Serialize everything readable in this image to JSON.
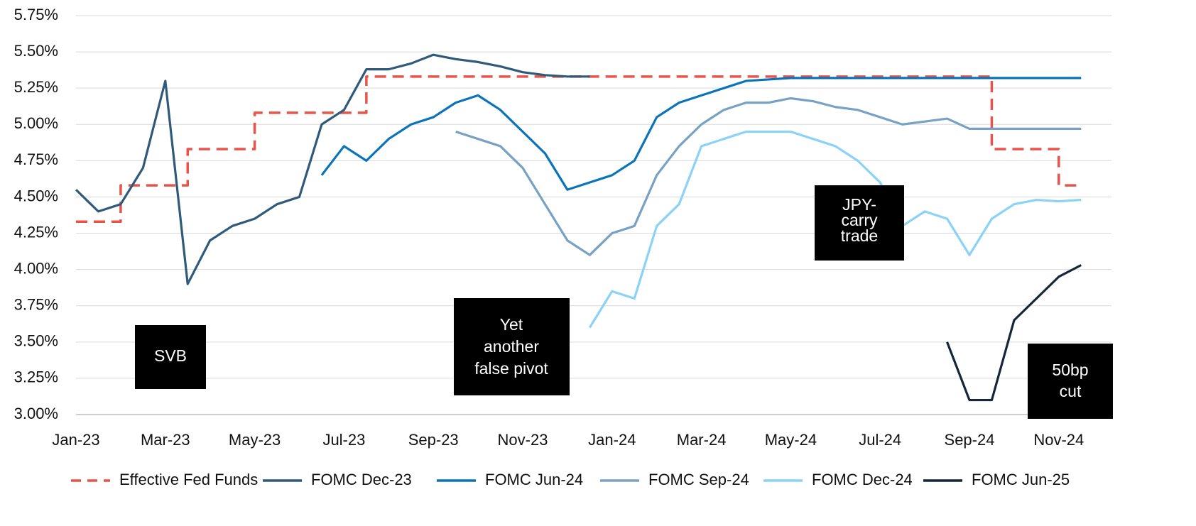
{
  "chart_data": {
    "type": "line",
    "categories": [
      "Jan-23",
      null,
      null,
      null,
      "Mar-23",
      null,
      null,
      null,
      "May-23",
      null,
      null,
      null,
      "Jul-23",
      null,
      null,
      null,
      "Sep-23",
      null,
      null,
      null,
      "Nov-23",
      null,
      null,
      null,
      "Jan-24",
      null,
      null,
      null,
      "Mar-24",
      null,
      null,
      null,
      "May-24",
      null,
      null,
      null,
      "Jul-24",
      null,
      null,
      null,
      "Sep-24",
      null,
      null,
      null,
      "Nov-24",
      null
    ],
    "ylim": [
      3,
      5.75
    ],
    "yticks": [
      {
        "value": 3,
        "label": "3.00%"
      },
      {
        "value": 3.25,
        "label": "3.25%"
      },
      {
        "value": 3.5,
        "label": "3.50%"
      },
      {
        "value": 3.75,
        "label": "3.75%"
      },
      {
        "value": 4,
        "label": "4.00%"
      },
      {
        "value": 4.25,
        "label": "4.25%"
      },
      {
        "value": 4.5,
        "label": "4.50%"
      },
      {
        "value": 4.75,
        "label": "4.75%"
      },
      {
        "value": 5,
        "label": "5.00%"
      },
      {
        "value": 5.25,
        "label": "5.25%"
      },
      {
        "value": 5.5,
        "label": "5.50%"
      },
      {
        "value": 5.75,
        "label": "5.75%"
      }
    ],
    "grid": true,
    "legend": "bottom",
    "series": [
      {
        "name": "Effective Fed Funds",
        "color": "#e8534a",
        "dashed": true,
        "step": true,
        "values": [
          4.33,
          4.33,
          4.58,
          4.58,
          4.58,
          4.83,
          4.83,
          4.83,
          5.08,
          5.08,
          5.08,
          5.08,
          5.08,
          5.33,
          5.33,
          5.33,
          5.33,
          5.33,
          5.33,
          5.33,
          5.33,
          5.33,
          5.33,
          5.33,
          5.33,
          5.33,
          5.33,
          5.33,
          5.33,
          5.33,
          5.33,
          5.33,
          5.33,
          5.33,
          5.33,
          5.33,
          5.33,
          5.33,
          5.33,
          5.33,
          5.33,
          4.83,
          4.83,
          4.83,
          4.58,
          4.58
        ]
      },
      {
        "name": "FOMC Dec-23",
        "color": "#2f5a7a",
        "values": [
          4.55,
          4.4,
          4.45,
          4.7,
          5.3,
          3.9,
          4.2,
          4.3,
          4.35,
          4.45,
          4.5,
          5.0,
          5.1,
          5.38,
          5.38,
          5.42,
          5.48,
          5.45,
          5.43,
          5.4,
          5.36,
          5.34,
          5.33,
          5.33,
          null,
          null,
          null,
          null,
          null,
          null,
          null,
          null,
          null,
          null,
          null,
          null,
          null,
          null,
          null,
          null,
          null,
          null,
          null,
          null,
          null,
          null
        ]
      },
      {
        "name": "FOMC Jun-24",
        "color": "#0b74b8",
        "values": [
          null,
          null,
          null,
          null,
          null,
          null,
          null,
          null,
          null,
          null,
          null,
          4.65,
          4.85,
          4.75,
          4.9,
          5.0,
          5.05,
          5.15,
          5.2,
          5.1,
          4.95,
          4.8,
          4.55,
          4.6,
          4.65,
          4.75,
          5.05,
          5.15,
          5.2,
          5.25,
          5.3,
          5.31,
          5.32,
          5.32,
          5.32,
          5.32,
          5.32,
          5.32,
          5.32,
          5.32,
          5.32,
          5.32,
          5.32,
          5.32,
          5.32,
          5.32
        ]
      },
      {
        "name": "FOMC Sep-24",
        "color": "#78a2c3",
        "values": [
          null,
          null,
          null,
          null,
          null,
          null,
          null,
          null,
          null,
          null,
          null,
          null,
          null,
          null,
          null,
          null,
          null,
          4.95,
          4.9,
          4.85,
          4.7,
          4.45,
          4.2,
          4.1,
          4.25,
          4.3,
          4.65,
          4.85,
          5.0,
          5.1,
          5.15,
          5.15,
          5.18,
          5.16,
          5.12,
          5.1,
          5.05,
          5.0,
          5.02,
          5.04,
          4.97,
          4.97,
          4.97,
          4.97,
          4.97,
          4.97
        ]
      },
      {
        "name": "FOMC Dec-24",
        "color": "#8ad2f6",
        "values": [
          null,
          null,
          null,
          null,
          null,
          null,
          null,
          null,
          null,
          null,
          null,
          null,
          null,
          null,
          null,
          null,
          null,
          null,
          null,
          null,
          null,
          null,
          null,
          3.6,
          3.85,
          3.8,
          4.3,
          4.45,
          4.85,
          4.9,
          4.95,
          4.95,
          4.95,
          4.9,
          4.85,
          4.75,
          4.6,
          4.3,
          4.4,
          4.35,
          4.1,
          4.35,
          4.45,
          4.48,
          4.47,
          4.48
        ]
      },
      {
        "name": "FOMC Jun-25",
        "color": "#16263a",
        "values": [
          null,
          null,
          null,
          null,
          null,
          null,
          null,
          null,
          null,
          null,
          null,
          null,
          null,
          null,
          null,
          null,
          null,
          null,
          null,
          null,
          null,
          null,
          null,
          null,
          null,
          null,
          null,
          null,
          null,
          null,
          null,
          null,
          null,
          null,
          null,
          null,
          null,
          null,
          null,
          3.5,
          3.1,
          3.1,
          3.65,
          3.8,
          3.95,
          4.03
        ]
      }
    ],
    "annotations": [
      {
        "lines": [
          "SVB"
        ]
      },
      {
        "lines": [
          "Yet",
          "another",
          "false pivot"
        ]
      },
      {
        "lines": [
          "JPY-",
          "carry",
          "trade"
        ]
      },
      {
        "lines": [
          "50bp",
          "cut"
        ]
      }
    ]
  }
}
